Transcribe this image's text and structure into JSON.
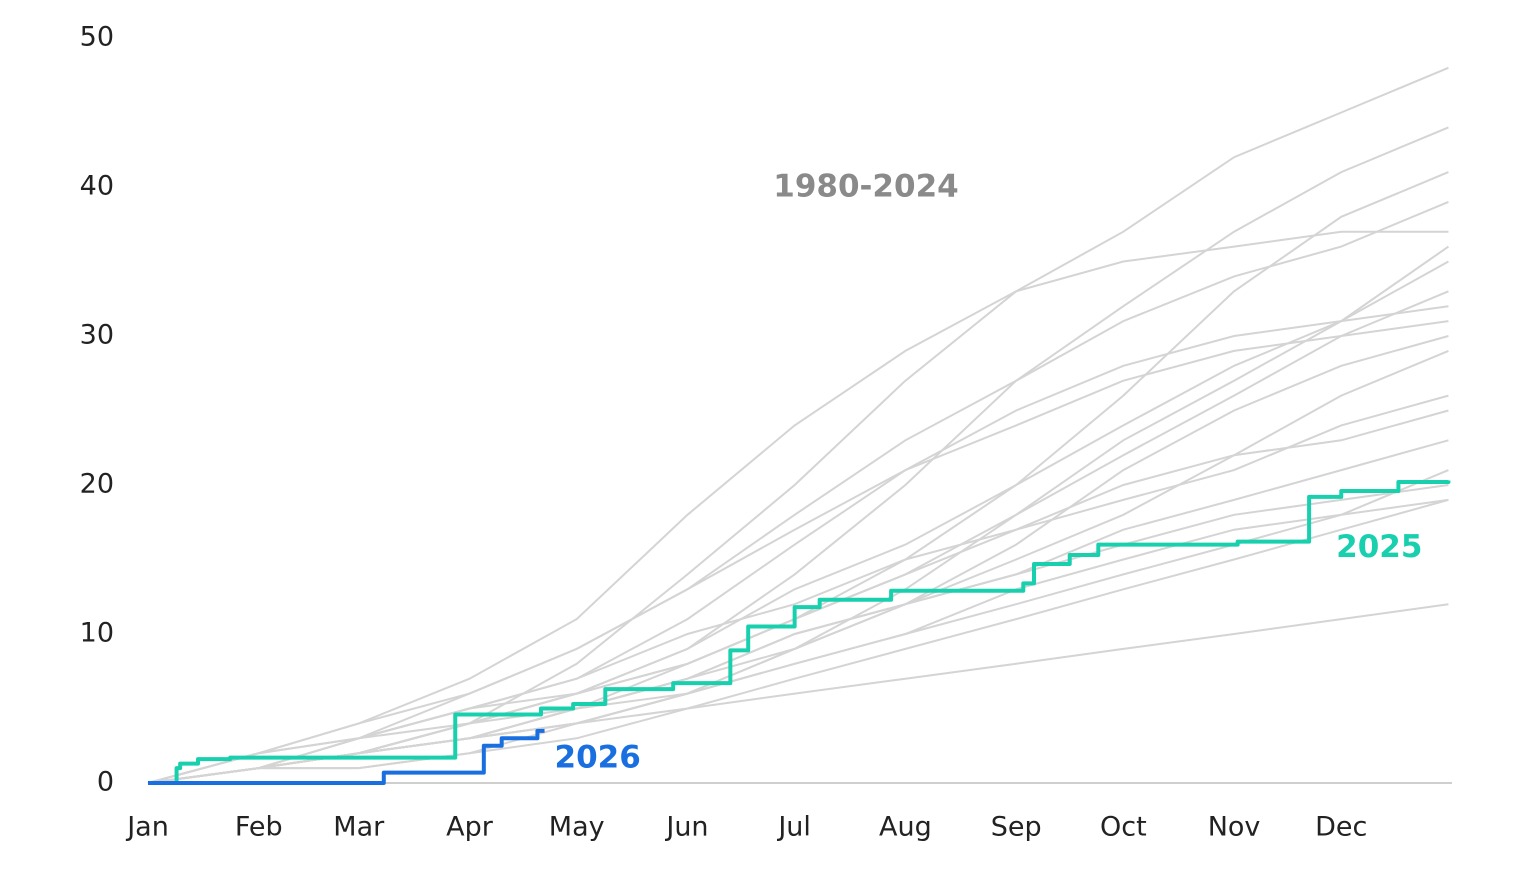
{
  "chart_data": {
    "type": "line",
    "annotation": "1980-2024",
    "x": [
      0,
      31,
      59,
      90,
      120,
      151,
      181,
      212,
      243,
      273,
      304,
      334,
      364
    ],
    "xlim": [
      0,
      365
    ],
    "xticks": [
      {
        "value": 0,
        "label": "Jan"
      },
      {
        "value": 31,
        "label": "Feb"
      },
      {
        "value": 59,
        "label": "Mar"
      },
      {
        "value": 90,
        "label": "Apr"
      },
      {
        "value": 120,
        "label": "May"
      },
      {
        "value": 151,
        "label": "Jun"
      },
      {
        "value": 181,
        "label": "Jul"
      },
      {
        "value": 212,
        "label": "Aug"
      },
      {
        "value": 243,
        "label": "Sep"
      },
      {
        "value": 273,
        "label": "Oct"
      },
      {
        "value": 304,
        "label": "Nov"
      },
      {
        "value": 334,
        "label": "Dec"
      }
    ],
    "ylim": [
      0,
      50
    ],
    "yticks": [
      0,
      10,
      20,
      30,
      40,
      50
    ],
    "grid": false,
    "background_color": "#d4d4d4",
    "background_series": [
      [
        0,
        1,
        2,
        3,
        5,
        8,
        11,
        14,
        18,
        22,
        26,
        30,
        33
      ],
      [
        0,
        1,
        2,
        4,
        8,
        14,
        20,
        27,
        33,
        37,
        42,
        45,
        48
      ],
      [
        0,
        2,
        3,
        5,
        7,
        10,
        12,
        15,
        17,
        19,
        21,
        24,
        26
      ],
      [
        0,
        1,
        1,
        2,
        4,
        6,
        9,
        12,
        14,
        16,
        18,
        19,
        20
      ],
      [
        0,
        2,
        4,
        7,
        11,
        18,
        24,
        29,
        33,
        35,
        36,
        37,
        37
      ],
      [
        0,
        1,
        3,
        4,
        6,
        9,
        14,
        20,
        27,
        32,
        37,
        41,
        44
      ],
      [
        0,
        1,
        2,
        3,
        4,
        5,
        6,
        7,
        8,
        9,
        10,
        11,
        12
      ],
      [
        0,
        1,
        2,
        3,
        5,
        7,
        10,
        12,
        15,
        18,
        22,
        26,
        29
      ],
      [
        0,
        1,
        2,
        4,
        6,
        9,
        13,
        16,
        20,
        24,
        28,
        31,
        35
      ],
      [
        0,
        2,
        3,
        5,
        7,
        11,
        16,
        21,
        25,
        28,
        30,
        31,
        32
      ],
      [
        0,
        1,
        2,
        3,
        5,
        6,
        8,
        10,
        13,
        15,
        17,
        18,
        19
      ],
      [
        0,
        1,
        3,
        5,
        6,
        8,
        11,
        14,
        17,
        20,
        22,
        23,
        25
      ],
      [
        0,
        1,
        2,
        4,
        6,
        8,
        11,
        15,
        20,
        26,
        33,
        38,
        41
      ],
      [
        0,
        1,
        2,
        3,
        4,
        6,
        8,
        10,
        12,
        14,
        16,
        18,
        21
      ],
      [
        0,
        2,
        4,
        6,
        9,
        13,
        17,
        21,
        24,
        27,
        29,
        30,
        31
      ],
      [
        0,
        1,
        2,
        3,
        5,
        7,
        9,
        12,
        16,
        21,
        25,
        28,
        30
      ],
      [
        0,
        1,
        1,
        2,
        3,
        5,
        7,
        9,
        11,
        13,
        15,
        17,
        19
      ],
      [
        0,
        1,
        3,
        6,
        9,
        13,
        18,
        23,
        27,
        31,
        34,
        36,
        39
      ],
      [
        0,
        1,
        2,
        3,
        4,
        6,
        9,
        13,
        18,
        23,
        27,
        31,
        36
      ],
      [
        0,
        1,
        2,
        4,
        5,
        7,
        10,
        12,
        14,
        17,
        19,
        21,
        23
      ]
    ],
    "series": [
      {
        "name": "2025",
        "color": "#19d0ae",
        "x": [
          0,
          8,
          9,
          14,
          23,
          86,
          110,
          119,
          128,
          147,
          163,
          168,
          181,
          188,
          208,
          245,
          248,
          258,
          266,
          305,
          325,
          334,
          350,
          364
        ],
        "values": [
          0,
          1,
          1.3,
          1.6,
          1.7,
          4.6,
          5,
          5.3,
          6.3,
          6.7,
          8.9,
          10.5,
          11.8,
          12.3,
          12.9,
          13.4,
          14.7,
          15.3,
          16,
          16.2,
          19.2,
          19.6,
          20.2,
          20.3
        ]
      },
      {
        "name": "2026",
        "color": "#1a6fe0",
        "x": [
          0,
          66,
          94,
          99,
          109,
          111
        ],
        "values": [
          0,
          0.7,
          2.5,
          3,
          3.5,
          3.5
        ]
      }
    ]
  }
}
